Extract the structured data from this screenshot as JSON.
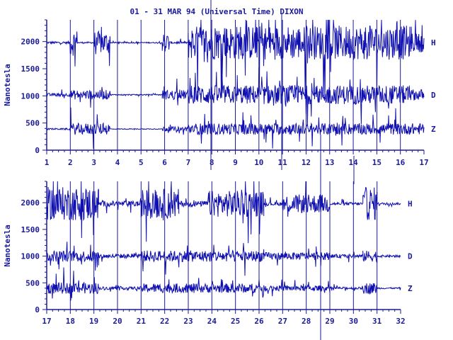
{
  "colors": {
    "ink": "#1a1a9a",
    "trace": "#1010b0",
    "background": "#ffffff"
  },
  "chart_data": {
    "type": "line",
    "title": "01 - 31 MAR 94 (Universal Time) DIXON",
    "ylabel": "Nanotesla",
    "ylim": [
      0,
      2400
    ],
    "yticks": [
      0,
      500,
      1000,
      1500,
      2000
    ],
    "series_labels": [
      "H",
      "D",
      "Z"
    ],
    "panels": [
      {
        "xlim": [
          1,
          17
        ],
        "xticks": [
          "1",
          "2",
          "3",
          "4",
          "5",
          "6",
          "7",
          "8",
          "9",
          "10",
          "11",
          "12",
          "13",
          "14",
          "15",
          "16",
          "17"
        ],
        "series": [
          {
            "name": "H",
            "baseline": 1980,
            "segments": [
              {
                "start": 1.0,
                "end": 2.0,
                "amp": 60
              },
              {
                "start": 2.0,
                "end": 2.3,
                "amp": 700
              },
              {
                "start": 2.3,
                "end": 3.0,
                "amp": 40
              },
              {
                "start": 3.0,
                "end": 3.7,
                "amp": 600
              },
              {
                "start": 3.7,
                "end": 5.9,
                "amp": 30
              },
              {
                "start": 5.9,
                "end": 6.2,
                "amp": 500
              },
              {
                "start": 6.2,
                "end": 7.0,
                "amp": 60
              },
              {
                "start": 7.0,
                "end": 16.4,
                "amp": 900
              },
              {
                "start": 16.4,
                "end": 17.0,
                "amp": 500
              }
            ]
          },
          {
            "name": "D",
            "baseline": 1020,
            "segments": [
              {
                "start": 1.0,
                "end": 2.0,
                "amp": 80
              },
              {
                "start": 2.0,
                "end": 3.7,
                "amp": 250
              },
              {
                "start": 3.7,
                "end": 5.9,
                "amp": 30
              },
              {
                "start": 5.9,
                "end": 7.0,
                "amp": 250
              },
              {
                "start": 7.0,
                "end": 16.4,
                "amp": 500
              },
              {
                "start": 16.4,
                "end": 17.0,
                "amp": 300
              }
            ]
          },
          {
            "name": "Z",
            "baseline": 390,
            "segments": [
              {
                "start": 1.0,
                "end": 2.0,
                "amp": 40
              },
              {
                "start": 2.0,
                "end": 3.7,
                "amp": 300
              },
              {
                "start": 3.7,
                "end": 5.9,
                "amp": 20
              },
              {
                "start": 5.9,
                "end": 7.0,
                "amp": 120
              },
              {
                "start": 7.0,
                "end": 16.4,
                "amp": 300
              },
              {
                "start": 16.4,
                "end": 17.0,
                "amp": 300
              }
            ]
          }
        ]
      },
      {
        "xlim": [
          17,
          32
        ],
        "xticks": [
          "17",
          "18",
          "19",
          "20",
          "21",
          "22",
          "23",
          "24",
          "25",
          "26",
          "27",
          "28",
          "29",
          "30",
          "31",
          "32"
        ],
        "series": [
          {
            "name": "H",
            "baseline": 1980,
            "segments": [
              {
                "start": 17.0,
                "end": 19.2,
                "amp": 900
              },
              {
                "start": 19.2,
                "end": 21.0,
                "amp": 150
              },
              {
                "start": 21.0,
                "end": 22.6,
                "amp": 800
              },
              {
                "start": 22.6,
                "end": 23.8,
                "amp": 150
              },
              {
                "start": 23.8,
                "end": 26.2,
                "amp": 700
              },
              {
                "start": 26.2,
                "end": 27.0,
                "amp": 100
              },
              {
                "start": 27.0,
                "end": 29.0,
                "amp": 500
              },
              {
                "start": 29.0,
                "end": 30.4,
                "amp": 80
              },
              {
                "start": 30.4,
                "end": 31.0,
                "amp": 900
              },
              {
                "start": 31.0,
                "end": 32.0,
                "amp": 60
              }
            ]
          },
          {
            "name": "D",
            "baseline": 1000,
            "segments": [
              {
                "start": 17.0,
                "end": 19.2,
                "amp": 300
              },
              {
                "start": 19.2,
                "end": 21.0,
                "amp": 120
              },
              {
                "start": 21.0,
                "end": 26.2,
                "amp": 300
              },
              {
                "start": 26.2,
                "end": 29.0,
                "amp": 200
              },
              {
                "start": 29.0,
                "end": 30.4,
                "amp": 100
              },
              {
                "start": 30.4,
                "end": 31.0,
                "amp": 300
              },
              {
                "start": 31.0,
                "end": 32.0,
                "amp": 60
              }
            ]
          },
          {
            "name": "Z",
            "baseline": 400,
            "segments": [
              {
                "start": 17.0,
                "end": 19.2,
                "amp": 300
              },
              {
                "start": 19.2,
                "end": 21.0,
                "amp": 80
              },
              {
                "start": 21.0,
                "end": 26.2,
                "amp": 250
              },
              {
                "start": 26.2,
                "end": 29.0,
                "amp": 150
              },
              {
                "start": 29.0,
                "end": 30.4,
                "amp": 60
              },
              {
                "start": 30.4,
                "end": 31.0,
                "amp": 300
              },
              {
                "start": 31.0,
                "end": 32.0,
                "amp": 40
              }
            ]
          }
        ]
      }
    ]
  }
}
